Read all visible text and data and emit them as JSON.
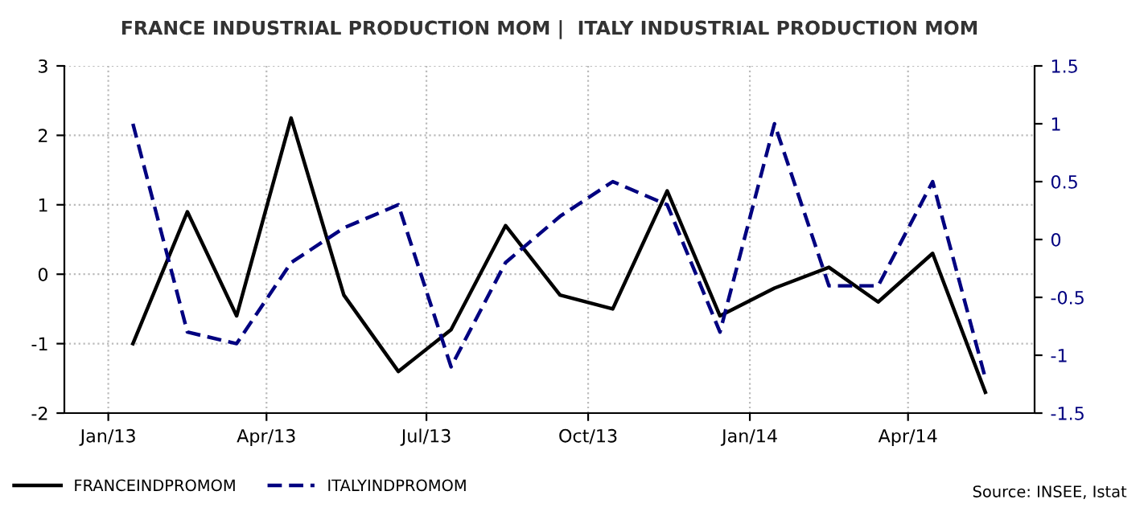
{
  "chart_data": {
    "type": "line",
    "title": "FRANCE INDUSTRIAL PRODUCTION MOM |  ITALY INDUSTRIAL PRODUCTION MOM",
    "x": [
      "2013-01-15",
      "2013-02-15",
      "2013-03-15",
      "2013-04-15",
      "2013-05-15",
      "2013-06-15",
      "2013-07-15",
      "2013-08-15",
      "2013-09-15",
      "2013-10-15",
      "2013-11-15",
      "2013-12-15",
      "2014-01-15",
      "2014-02-15",
      "2014-03-15",
      "2014-04-15",
      "2014-05-15"
    ],
    "series": [
      {
        "name": "FRANCEINDPROMOM",
        "color": "#000000",
        "line_style": "solid",
        "values": [
          -1.0,
          0.9,
          -0.6,
          2.25,
          -0.3,
          -1.4,
          -0.8,
          0.7,
          -0.3,
          -0.5,
          1.2,
          -0.6,
          -0.2,
          0.1,
          -0.4,
          0.3,
          -1.7
        ]
      },
      {
        "name": "ITALYINDPROMOM",
        "color": "#000080",
        "line_style": "dashed",
        "axis": "y2",
        "values": [
          1.0,
          -0.8,
          -0.9,
          -0.2,
          0.1,
          0.3,
          -1.1,
          -0.2,
          0.2,
          0.5,
          0.3,
          -0.8,
          1.0,
          -0.4,
          -0.4,
          0.5,
          -1.2
        ]
      }
    ],
    "xlim": [
      "2012-12-07",
      "2014-06-12"
    ],
    "xticks": [
      {
        "value": "2013-01-01",
        "label": "Jan/13"
      },
      {
        "value": "2013-04-01",
        "label": "Apr/13"
      },
      {
        "value": "2013-07-01",
        "label": "Jul/13"
      },
      {
        "value": "2013-10-01",
        "label": "Oct/13"
      },
      {
        "value": "2014-01-01",
        "label": "Jan/14"
      },
      {
        "value": "2014-04-01",
        "label": "Apr/14"
      }
    ],
    "ylim": [
      -2,
      3
    ],
    "yticks": [
      -2,
      -1,
      0,
      1,
      2,
      3
    ],
    "y2lim": [
      -1.5,
      1.5
    ],
    "y2ticks": [
      -1.5,
      -1,
      -0.5,
      0,
      0.5,
      1,
      1.5
    ],
    "grid": true,
    "legend": "bottom left",
    "annotations": [
      "Source: INSEE, Istat"
    ]
  }
}
